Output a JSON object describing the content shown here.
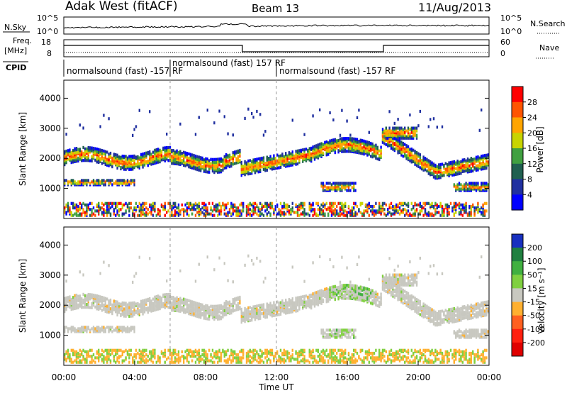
{
  "header": {
    "station": "Adak West (fitACF)",
    "beam": "Beam 13",
    "date": "11/Aug/2013"
  },
  "panels": {
    "noise": {
      "left_label": "N.Sky",
      "right_label": "N.Search",
      "left_ticks": [
        "10^5",
        "10^0"
      ],
      "right_ticks": [
        "10^5",
        "10^0"
      ]
    },
    "freq": {
      "left_label_1": "Freq.",
      "left_label_2": "[MHz]",
      "left_label_3": "CPID",
      "right_label": "Nave",
      "left_ticks": [
        "18",
        "8"
      ],
      "right_ticks": [
        "60",
        "0"
      ]
    },
    "cpid_labels": [
      {
        "text": "normalsound (fast) -157 RF",
        "start_hour": 0.1
      },
      {
        "text": "normalsound (fast) 157 RF",
        "start_hour": 6.1
      },
      {
        "text": "normalsound (fast) -157 RF",
        "start_hour": 12.1
      }
    ]
  },
  "colorbars": {
    "power": {
      "label": "Power [dB]",
      "ticks": [
        "28",
        "24",
        "20",
        "16",
        "12",
        "8",
        "4"
      ],
      "colors": [
        "#ff0000",
        "#ff5500",
        "#ffa500",
        "#c8d400",
        "#40a040",
        "#206050",
        "#2030a0",
        "#0000ff"
      ]
    },
    "velocity": {
      "label": "Velocity [m s⁻¹]",
      "ticks": [
        "200",
        "100",
        "50",
        "15",
        "-15",
        "-50",
        "-100",
        "-200"
      ],
      "colors": [
        "#1830c0",
        "#208040",
        "#40b040",
        "#80d040",
        "#c8c8c0",
        "#ffb030",
        "#ff6020",
        "#ff2010",
        "#e00000"
      ]
    }
  },
  "chart_data": [
    {
      "type": "heatmap",
      "title": "Power",
      "ylabel": "Slant Range [km]",
      "xlabel": "Time UT",
      "ylim": [
        0,
        4600
      ],
      "yticks": [
        "1000",
        "2000",
        "3000",
        "4000"
      ],
      "xlim": [
        0,
        24
      ],
      "xticks": [
        "00:00",
        "04:00",
        "08:00",
        "12:00",
        "16:00",
        "20:00",
        "00:00"
      ],
      "colorbar": "power",
      "value_range_db": [
        0,
        30
      ]
    },
    {
      "type": "heatmap",
      "title": "Velocity",
      "ylabel": "Slant Range [km]",
      "xlabel": "Time UT",
      "ylim": [
        0,
        4600
      ],
      "yticks": [
        "1000",
        "2000",
        "3000",
        "4000"
      ],
      "xlim": [
        0,
        24
      ],
      "xticks": [
        "00:00",
        "04:00",
        "08:00",
        "12:00",
        "16:00",
        "20:00",
        "00:00"
      ],
      "colorbar": "velocity",
      "value_range_ms": [
        -200,
        200
      ]
    }
  ],
  "axis": {
    "xlabel": "Time UT"
  }
}
